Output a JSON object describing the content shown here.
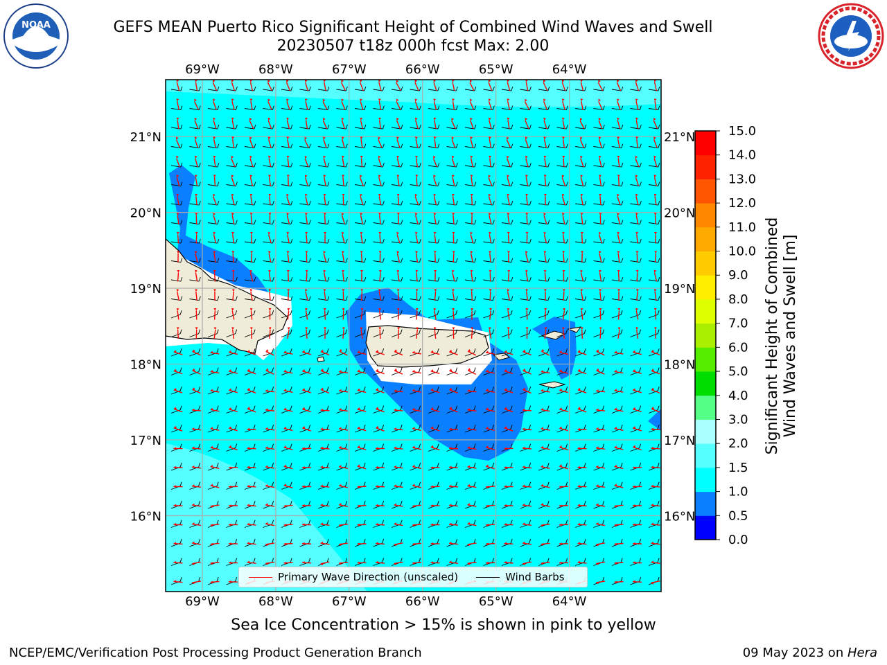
{
  "title": {
    "line1": "GEFS MEAN Puerto Rico Significant Height of Combined Wind Waves and Swell",
    "line2": "20230507 t18z 000h fcst   Max: 2.00"
  },
  "logos": {
    "left": {
      "icon": "noaa-logo-icon",
      "text": "NOAA"
    },
    "right": {
      "icon": "nws-logo-icon"
    }
  },
  "map": {
    "lon_labels": [
      "69°W",
      "68°W",
      "67°W",
      "66°W",
      "65°W",
      "64°W"
    ],
    "lat_labels": [
      "21°N",
      "20°N",
      "19°N",
      "18°N",
      "17°N",
      "16°N"
    ],
    "lon_range": [
      -69.5,
      -62.75
    ],
    "lat_range": [
      15.0,
      21.75
    ],
    "grid": true,
    "land_color": "#efedd9",
    "wave_arrow_color": "#ff0000",
    "barb_color": "#000000"
  },
  "legend": {
    "items": [
      {
        "label": "Primary Wave Direction (unscaled)",
        "color": "#ff0000"
      },
      {
        "label": "Wind Barbs",
        "color": "#000000"
      }
    ],
    "placement": "bottom-center"
  },
  "colorbar": {
    "label_line1": "Significant Height of Combined",
    "label_line2": "Wind Waves and Swell [m]",
    "ticks": [
      "15.0",
      "14.0",
      "13.0",
      "12.0",
      "11.0",
      "10.0",
      "9.0",
      "8.0",
      "7.0",
      "6.0",
      "5.0",
      "4.0",
      "3.0",
      "2.0",
      "1.5",
      "1.0",
      "0.5",
      "0.0"
    ],
    "colors_bottom_to_top": [
      "#0000ff",
      "#0a7fff",
      "#00ffff",
      "#55ffff",
      "#aaffff",
      "#55ff88",
      "#00dd00",
      "#55ee00",
      "#aaee00",
      "#ddff00",
      "#ffee00",
      "#ffcc00",
      "#ffaa00",
      "#ff8800",
      "#ff5500",
      "#ff2200",
      "#ff0000"
    ]
  },
  "caption": "Sea Ice Concentration > 15% is shown in pink to yellow",
  "footer": {
    "left": "NCEP/EMC/Verification Post Processing Product Generation Branch",
    "right_date": "09 May 2023 on ",
    "right_machine": "Hera"
  }
}
